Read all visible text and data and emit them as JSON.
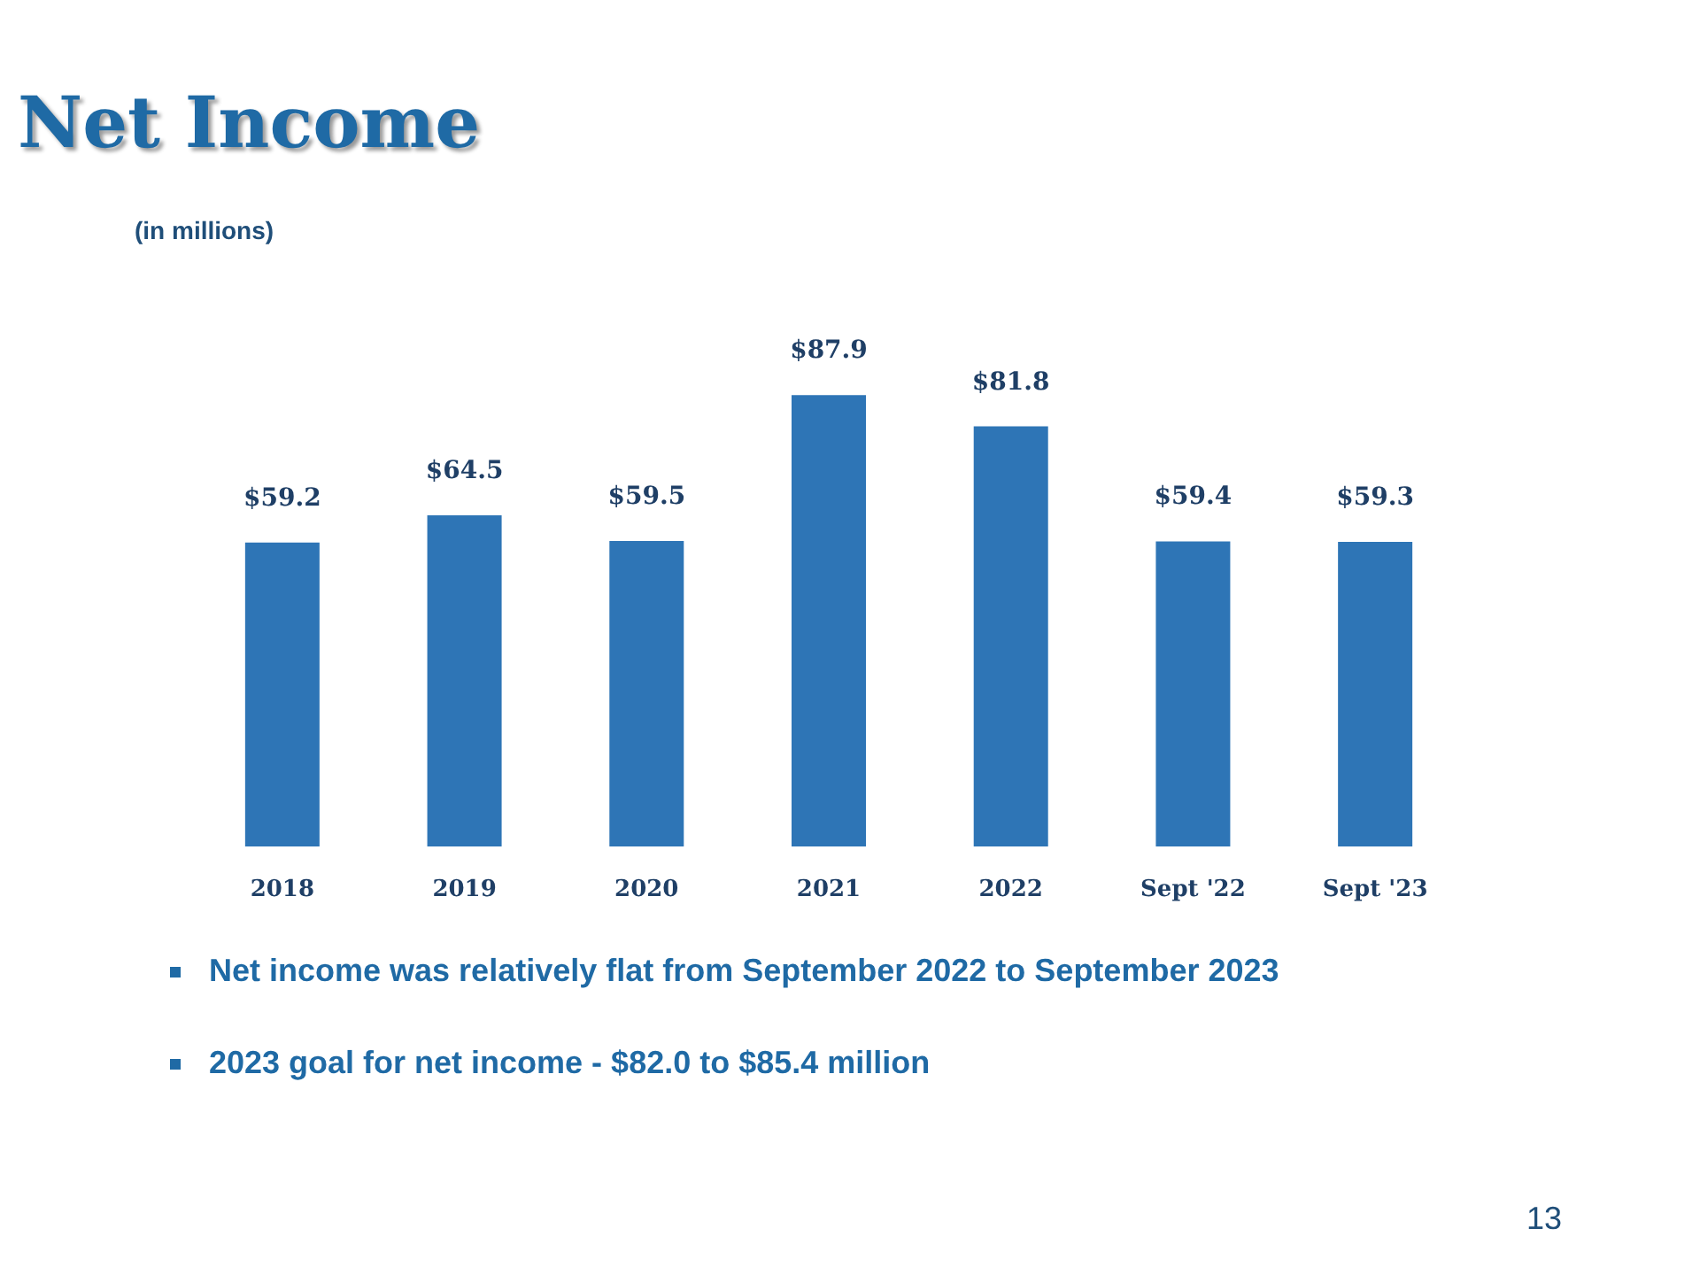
{
  "chart_data": {
    "type": "bar",
    "title": "Net Income",
    "subtitle": "(in millions)",
    "categories": [
      "2018",
      "2019",
      "2020",
      "2021",
      "2022",
      "Sept '22",
      "Sept '23"
    ],
    "values": [
      59.2,
      64.5,
      59.5,
      87.9,
      81.8,
      59.4,
      59.3
    ],
    "value_labels": [
      "$59.2",
      "$64.5",
      "$59.5",
      "$87.9",
      "$81.8",
      "$59.4",
      "$59.3"
    ],
    "color": "#2e75b6",
    "annotations": [
      "Net income was relatively flat from September 2022 to September 2023",
      "2023 goal for net income - $82.0 to $85.4 million",
      "13"
    ]
  }
}
